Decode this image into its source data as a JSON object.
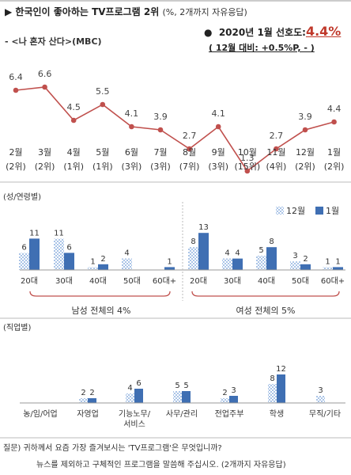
{
  "header": {
    "title": "한국인이 좋아하는 TV프로그램 2위",
    "title_note": "(%, 2개까지 자유응답)",
    "subtitle": "- <나 혼자 산다>(MBC)",
    "preference_label": "2020년 1월 선호도:",
    "preference_value": "4.4%",
    "change_note": "( 12월 대비: +0.5%P, - )"
  },
  "colors": {
    "line": "#c0504d",
    "bar_dec": "#6e9bd6",
    "bar_jan": "#3f6fb3",
    "bracket": "#c0504d"
  },
  "chart_data": [
    {
      "type": "line",
      "months": [
        "2월",
        "3월",
        "4월",
        "5월",
        "6월",
        "7월",
        "8월",
        "9월",
        "10월",
        "11월",
        "12월",
        "1월"
      ],
      "ranks": [
        "(2위)",
        "(2위)",
        "(1위)",
        "(1위)",
        "(3위)",
        "(3위)",
        "(7위)",
        "(3위)",
        "(15위)",
        "(4위)",
        "(2위)",
        "(2위)"
      ],
      "values": [
        6.4,
        6.6,
        4.5,
        5.5,
        4.1,
        3.9,
        2.7,
        4.1,
        1.3,
        2.7,
        3.9,
        4.4
      ],
      "value_labels": [
        "6.4",
        "6.6",
        "4.5",
        "5.5",
        "4.1",
        "3.9",
        "2.7",
        "4.1",
        "1.3",
        "2.7",
        "3.9",
        "4.4"
      ]
    },
    {
      "type": "bar",
      "section_label": "(성/연령별)",
      "legend": [
        "12월",
        "1월"
      ],
      "categories": [
        "20대",
        "30대",
        "40대",
        "50대",
        "60대+",
        "20대",
        "30대",
        "40대",
        "50대",
        "60대+"
      ],
      "series": [
        {
          "name": "12월",
          "values": [
            6,
            11,
            1,
            4,
            null,
            8,
            4,
            5,
            3,
            1
          ],
          "labels": [
            "6",
            "11",
            "1",
            "4",
            "",
            "8",
            "4",
            "5",
            "3",
            "1"
          ]
        },
        {
          "name": "1월",
          "values": [
            11,
            6,
            2,
            null,
            1,
            13,
            4,
            8,
            2,
            1
          ],
          "labels": [
            "11",
            "6",
            "2",
            "",
            "1",
            "13",
            "4",
            "8",
            "2",
            "1"
          ]
        }
      ],
      "group_labels": [
        "남성 전체의 4%",
        "여성 전체의 5%"
      ]
    },
    {
      "type": "bar",
      "section_label": "(직업별)",
      "categories": [
        "농/임/어업",
        "자영업",
        "기능노무/\n서비스",
        "사무/관리",
        "전업주부",
        "학생",
        "무직/기타"
      ],
      "series": [
        {
          "name": "12월",
          "values": [
            null,
            2,
            4,
            5,
            2,
            8,
            3
          ],
          "labels": [
            "",
            "2",
            "4",
            "5",
            "2",
            "8",
            "3"
          ]
        },
        {
          "name": "1월",
          "values": [
            null,
            2,
            6,
            5,
            3,
            12,
            null
          ],
          "labels": [
            "",
            "2",
            "6",
            "5",
            "3",
            "12",
            ""
          ]
        }
      ]
    }
  ],
  "footer": {
    "question": "질문) 귀하께서 요즘 가장 즐겨보시는 'TV프로그램'은 무엇입니까?",
    "instruction": "뉴스를 제외하고 구체적인 프로그램을 말씀해 주십시오. (2개까지 자유응답)"
  }
}
